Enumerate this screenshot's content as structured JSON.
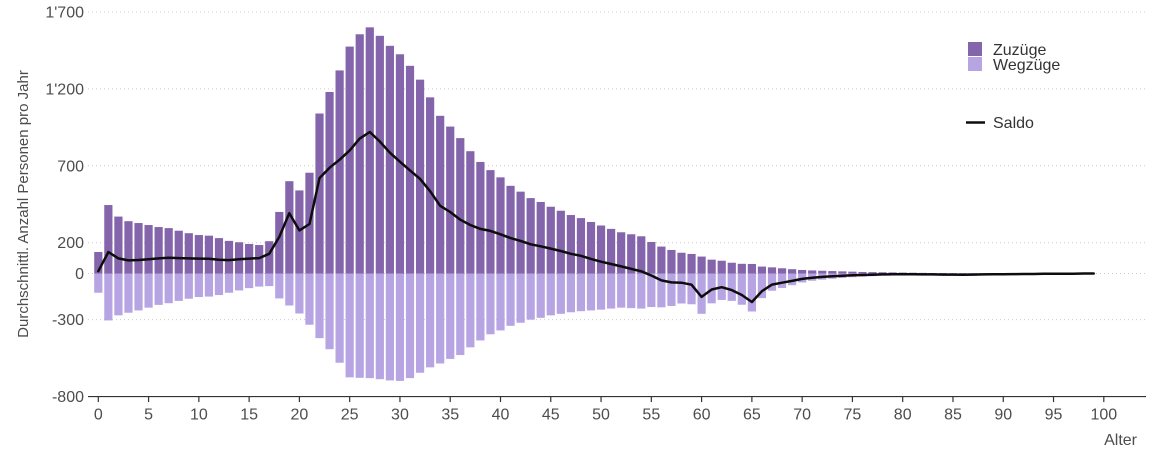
{
  "figure": {
    "y_axis_title": "Durchschnittl. Anzahl Personen pro Jahr",
    "x_axis_title": "Alter"
  },
  "legend": {
    "zuzuege_label": "Zuzüge",
    "wegzuege_label": "Wegzüge",
    "saldo_label": "Saldo"
  },
  "chart_data": {
    "type": "bar",
    "title": "",
    "xlabel": "Alter",
    "ylabel": "Durchschnittl. Anzahl Personen pro Jahr",
    "xlim": [
      0,
      100
    ],
    "ylim": [
      -800,
      1700
    ],
    "grid": "dotted-horizontal",
    "legend_position": "top-right",
    "x": [
      0,
      1,
      2,
      3,
      4,
      5,
      6,
      7,
      8,
      9,
      10,
      11,
      12,
      13,
      14,
      15,
      16,
      17,
      18,
      19,
      20,
      21,
      22,
      23,
      24,
      25,
      26,
      27,
      28,
      29,
      30,
      31,
      32,
      33,
      34,
      35,
      36,
      37,
      38,
      39,
      40,
      41,
      42,
      43,
      44,
      45,
      46,
      47,
      48,
      49,
      50,
      51,
      52,
      53,
      54,
      55,
      56,
      57,
      58,
      59,
      60,
      61,
      62,
      63,
      64,
      65,
      66,
      67,
      68,
      69,
      70,
      71,
      72,
      73,
      74,
      75,
      76,
      77,
      78,
      79,
      80,
      81,
      82,
      83,
      84,
      85,
      86,
      87,
      88,
      89,
      90,
      91,
      92,
      93,
      94,
      95,
      96,
      97,
      98,
      99
    ],
    "x_ticks": [
      0,
      5,
      10,
      15,
      20,
      25,
      30,
      35,
      40,
      45,
      50,
      55,
      60,
      65,
      70,
      75,
      80,
      85,
      90,
      95,
      100
    ],
    "y_ticks": [
      {
        "value": 1700,
        "label": "1'700"
      },
      {
        "value": 1200,
        "label": "1'200"
      },
      {
        "value": 700,
        "label": "700"
      },
      {
        "value": 200,
        "label": "200"
      },
      {
        "value": 0,
        "label": "0"
      },
      {
        "value": -300,
        "label": "-300"
      },
      {
        "value": -800,
        "label": "-800"
      }
    ],
    "series": [
      {
        "name": "Zuzüge",
        "type": "bar",
        "color": "#8465ab",
        "values": [
          140,
          445,
          370,
          340,
          328,
          315,
          302,
          295,
          278,
          262,
          250,
          246,
          230,
          212,
          203,
          192,
          185,
          210,
          400,
          600,
          540,
          655,
          1040,
          1180,
          1320,
          1475,
          1555,
          1600,
          1545,
          1480,
          1425,
          1350,
          1260,
          1145,
          1025,
          955,
          880,
          795,
          725,
          672,
          625,
          570,
          532,
          490,
          465,
          434,
          408,
          380,
          360,
          335,
          312,
          290,
          268,
          255,
          242,
          205,
          175,
          153,
          135,
          127,
          110,
          90,
          83,
          70,
          63,
          62,
          45,
          40,
          34,
          28,
          23,
          20,
          18,
          16,
          14,
          12,
          10,
          9,
          8,
          7,
          6,
          5,
          4,
          3,
          3,
          2,
          2,
          2,
          1,
          1,
          1,
          1,
          1,
          0,
          0,
          0,
          0,
          0,
          0,
          0
        ]
      },
      {
        "name": "Wegzüge",
        "type": "bar",
        "color": "#b7a4e3",
        "values": [
          -125,
          -305,
          -272,
          -255,
          -240,
          -222,
          -204,
          -193,
          -178,
          -164,
          -153,
          -150,
          -140,
          -125,
          -110,
          -95,
          -85,
          -82,
          -162,
          -208,
          -260,
          -333,
          -420,
          -492,
          -580,
          -675,
          -678,
          -680,
          -687,
          -695,
          -698,
          -680,
          -645,
          -610,
          -585,
          -555,
          -530,
          -480,
          -435,
          -395,
          -370,
          -340,
          -320,
          -300,
          -288,
          -272,
          -262,
          -252,
          -245,
          -240,
          -235,
          -228,
          -222,
          -225,
          -228,
          -218,
          -220,
          -211,
          -195,
          -200,
          -262,
          -194,
          -172,
          -178,
          -203,
          -247,
          -160,
          -112,
          -94,
          -76,
          -58,
          -47,
          -40,
          -34,
          -29,
          -24,
          -20,
          -17,
          -14,
          -12,
          -11,
          -10,
          -10,
          -9,
          -10,
          -9,
          -10,
          -9,
          -7,
          -6,
          -6,
          -5,
          -4,
          -3,
          -2,
          -2,
          -1,
          -1,
          0,
          0
        ]
      },
      {
        "name": "Saldo",
        "type": "line",
        "color": "#0d0d0d",
        "values": [
          15,
          140,
          98,
          85,
          88,
          93,
          98,
          102,
          100,
          98,
          97,
          96,
          90,
          87,
          93,
          97,
          100,
          128,
          238,
          392,
          280,
          322,
          620,
          688,
          740,
          800,
          877,
          920,
          858,
          785,
          727,
          670,
          615,
          535,
          440,
          400,
          350,
          315,
          290,
          277,
          255,
          230,
          212,
          190,
          177,
          162,
          146,
          128,
          115,
          95,
          77,
          62,
          46,
          30,
          14,
          -13,
          -45,
          -58,
          -60,
          -73,
          -152,
          -104,
          -89,
          -108,
          -140,
          -185,
          -115,
          -72,
          -60,
          -48,
          -35,
          -27,
          -22,
          -18,
          -15,
          -12,
          -10,
          -8,
          -6,
          -5,
          -5,
          -5,
          -6,
          -6,
          -7,
          -7,
          -8,
          -7,
          -6,
          -5,
          -5,
          -4,
          -3,
          -3,
          -2,
          -2,
          -1,
          -1,
          0,
          0
        ]
      }
    ],
    "style": {
      "grid_color": "#cccccc",
      "axis_color": "#333333",
      "tick_text_color": "#4d4d4d",
      "background": "#ffffff"
    }
  }
}
